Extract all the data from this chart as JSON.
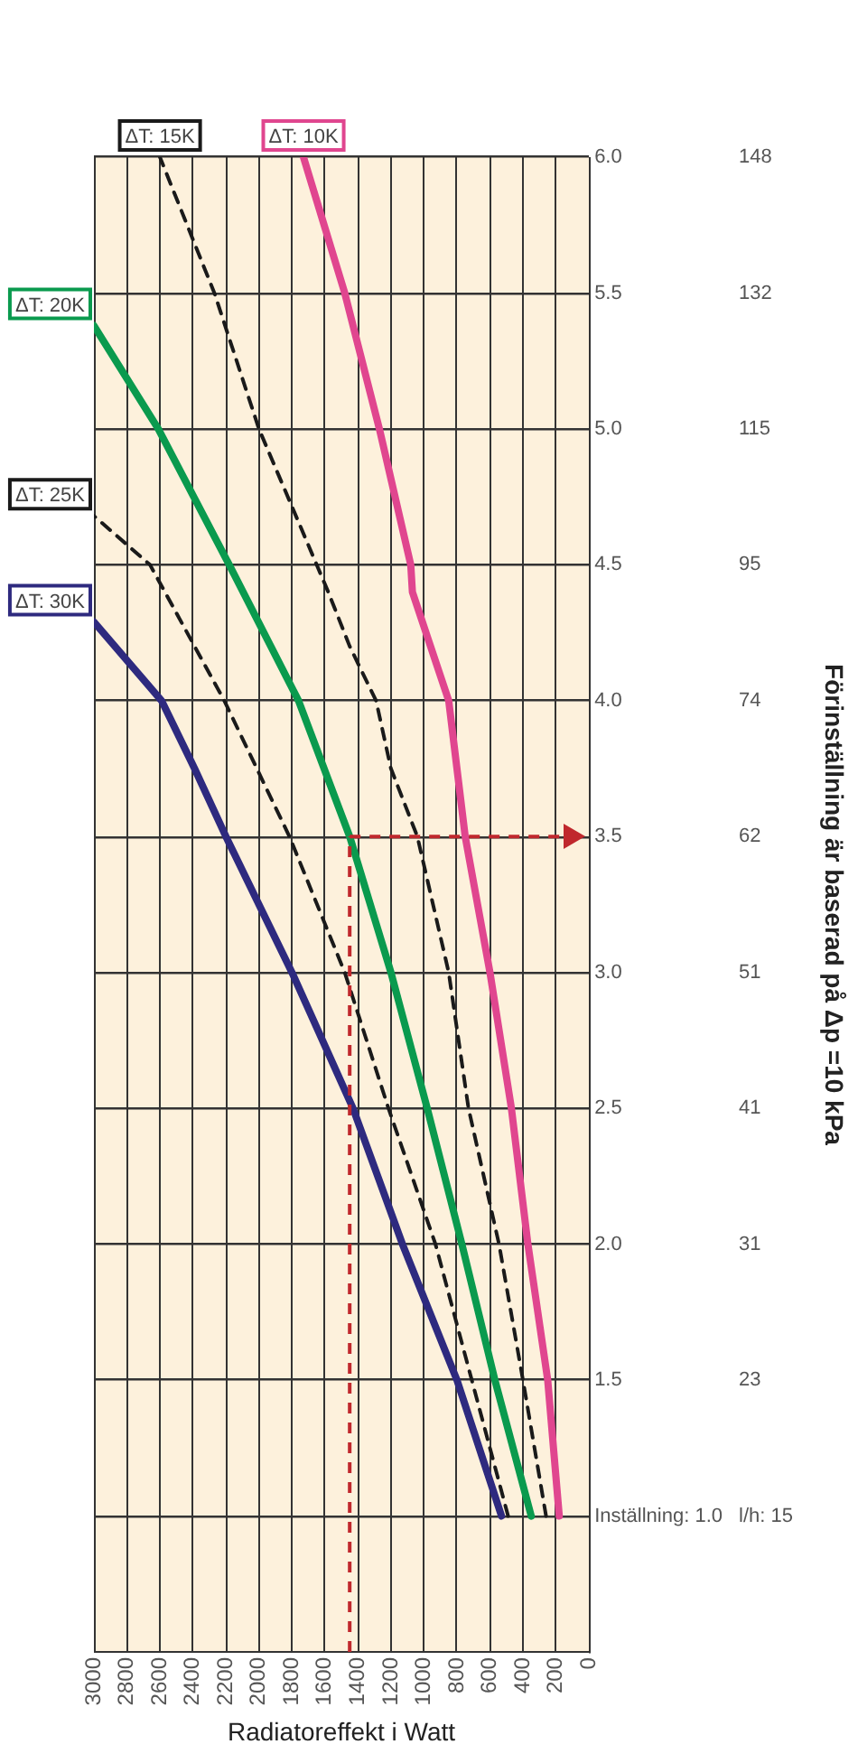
{
  "chart_data": {
    "type": "line",
    "xlabel": "Radiatoreffekt i Watt",
    "ylabel": "Förinställning är baserad på Δp =10 kPa",
    "xlim": [
      3000,
      0
    ],
    "ylim": [
      0.5,
      6
    ],
    "annotations": [
      "l/h: 15",
      "23",
      "31",
      "41",
      "51",
      "62",
      "74",
      "95",
      "115",
      "132",
      "148"
    ],
    "xticks": [
      0,
      200,
      400,
      600,
      800,
      1000,
      1200,
      1400,
      1600,
      1800,
      2000,
      2200,
      2400,
      2600,
      2800,
      3000
    ],
    "yticks": [
      {
        "value": 1,
        "label": "Inställning: 1.0"
      },
      {
        "value": 1.5,
        "label": "1.5"
      },
      {
        "value": 2,
        "label": "2.0"
      },
      {
        "value": 2.5,
        "label": "2.5"
      },
      {
        "value": 3,
        "label": "3.0"
      },
      {
        "value": 3.5,
        "label": "3.5"
      },
      {
        "value": 4,
        "label": "4.0"
      },
      {
        "value": 4.5,
        "label": "4.5"
      },
      {
        "value": 5,
        "label": "5.0"
      },
      {
        "value": 5.5,
        "label": "5.5"
      },
      {
        "value": 6,
        "label": "6.0"
      }
    ],
    "grid": true,
    "legend": false,
    "marker": "none",
    "series": [
      {
        "name": "ΔT: 30K",
        "color": "#2e2a7f",
        "line_style": "solid",
        "x": [
          530,
          800,
          1130,
          1430,
          1800,
          2200,
          2390,
          2590,
          3000
        ],
        "values": [
          1,
          1.5,
          2,
          2.5,
          3,
          3.5,
          3.75,
          4,
          4.29
        ]
      },
      {
        "name": "ΔT: 25K",
        "color": "#1a1a1a",
        "line_style": "dashed",
        "x": [
          490,
          710,
          930,
          1215,
          1480,
          1815,
          2210,
          2660,
          3000
        ],
        "values": [
          1,
          1.5,
          2,
          2.5,
          3,
          3.5,
          4,
          4.5,
          4.68
        ]
      },
      {
        "name": "ΔT: 20K",
        "color": "#0a9a4e",
        "line_style": "solid",
        "x": [
          350,
          570,
          770,
          980,
          1200,
          1450,
          1760,
          2180,
          2610,
          3000
        ],
        "values": [
          1,
          1.5,
          2,
          2.5,
          3,
          3.5,
          4,
          4.5,
          5,
          5.38
        ]
      },
      {
        "name": "ΔT: 15K",
        "color": "#1a1a1a",
        "line_style": "dashed",
        "x": [
          260,
          400,
          545,
          730,
          850,
          1040,
          1200,
          1290,
          1450,
          1580,
          2000,
          2270,
          2600
        ],
        "values": [
          1,
          1.5,
          2,
          2.5,
          3,
          3.5,
          3.75,
          4,
          4.2,
          4.4,
          5,
          5.5,
          6
        ]
      },
      {
        "name": "ΔT: 10K",
        "color": "#e0468f",
        "line_style": "solid",
        "x": [
          180,
          250,
          370,
          410,
          470,
          600,
          750,
          850,
          1070,
          1080,
          1270,
          1480,
          1730
        ],
        "values": [
          1,
          1.5,
          2,
          2.2,
          2.5,
          3,
          3.5,
          4,
          4.4,
          4.5,
          5,
          5.5,
          6
        ]
      }
    ],
    "ref_lines": [
      {
        "axis": "x",
        "value": 1450,
        "color": "#c0282d",
        "line_style": "dashed"
      },
      {
        "axis": "y",
        "value": 3.5,
        "color": "#c0282d",
        "line_style": "dashed"
      }
    ]
  }
}
